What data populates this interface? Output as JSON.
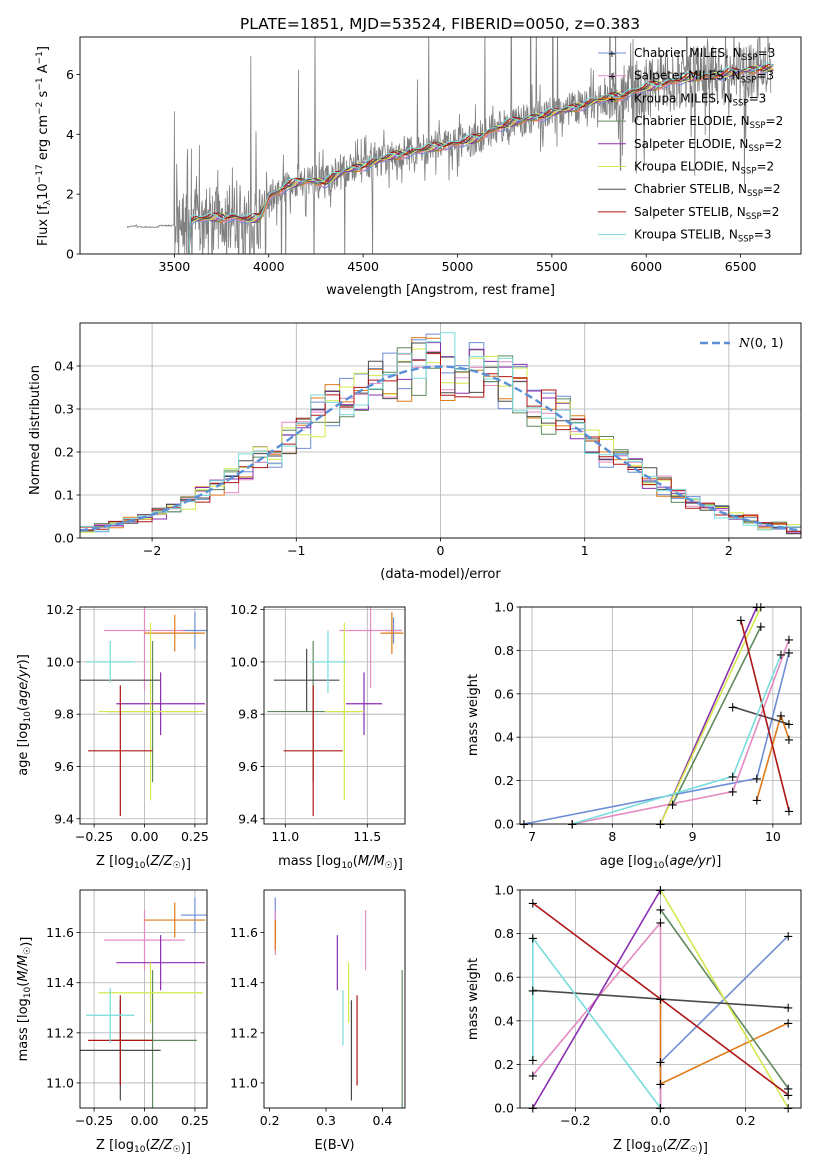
{
  "figure_title": "PLATE=1851, MJD=53524, FIBERID=0050, z=0.383",
  "colors": {
    "Chabrier MILES": "#6c8ed8",
    "Salpeter MILES": "#e58ac3",
    "Kroupa MILES": "#e07b1a",
    "Chabrier ELODIE": "#5f8a5f",
    "Salpeter ELODIE": "#8b2fb1",
    "Kroupa ELODIE": "#d4e84e",
    "Chabrier STELIB": "#4a4a4a",
    "Salpeter STELIB": "#b01515",
    "Kroupa STELIB": "#79dcdc",
    "spectrum": "#808080",
    "gaussian": "#5b8fd6",
    "grid": "#b0b0b0"
  },
  "chart_data": [
    {
      "id": "spectrum",
      "type": "line",
      "title": "PLATE=1851, MJD=53524, FIBERID=0050, z=0.383",
      "xlabel_main": "wavelength [Angstrom, rest frame]",
      "ylabel_parts": [
        "Flux [f",
        "λ",
        "10",
        "−17",
        " erg cm",
        "−2",
        " s",
        "−1",
        " A",
        "−1",
        "]"
      ],
      "xlim": [
        3000,
        6820
      ],
      "ylim": [
        0,
        7.25
      ],
      "xticks": [
        3500,
        4000,
        4500,
        5000,
        5500,
        6000,
        6500
      ],
      "yticks": [
        0,
        2,
        4,
        6
      ],
      "grid": false,
      "legend_position": "upper right",
      "legend": [
        {
          "name": "Chabrier MILES",
          "nssp": "3"
        },
        {
          "name": "Salpeter MILES",
          "nssp": "3"
        },
        {
          "name": "Kroupa MILES",
          "nssp": "3"
        },
        {
          "name": "Chabrier ELODIE",
          "nssp": "2"
        },
        {
          "name": "Salpeter ELODIE",
          "nssp": "2"
        },
        {
          "name": "Kroupa ELODIE",
          "nssp": "2"
        },
        {
          "name": "Chabrier STELIB",
          "nssp": "2"
        },
        {
          "name": "Salpeter STELIB",
          "nssp": "2"
        },
        {
          "name": "Kroupa STELIB",
          "nssp": "3"
        }
      ],
      "nssp_label": "N",
      "nssp_sub": "SSP",
      "spectrum_start": 3250,
      "spectrum_end": 6660,
      "model_start": 3530,
      "model_end": 6680,
      "continuum": [
        [
          3250,
          0.9
        ],
        [
          3300,
          0.95
        ],
        [
          3400,
          0.95
        ],
        [
          3500,
          0.95
        ],
        [
          3600,
          1.15
        ],
        [
          3700,
          1.2
        ],
        [
          3800,
          1.25
        ],
        [
          3900,
          1.15
        ],
        [
          3950,
          1.2
        ],
        [
          4000,
          1.9
        ],
        [
          4100,
          2.3
        ],
        [
          4200,
          2.45
        ],
        [
          4300,
          2.4
        ],
        [
          4400,
          2.75
        ],
        [
          4500,
          2.95
        ],
        [
          4600,
          3.15
        ],
        [
          4700,
          3.35
        ],
        [
          4800,
          3.45
        ],
        [
          4900,
          3.6
        ],
        [
          5000,
          3.7
        ],
        [
          5100,
          3.85
        ],
        [
          5200,
          4.2
        ],
        [
          5300,
          4.4
        ],
        [
          5400,
          4.55
        ],
        [
          5500,
          4.7
        ],
        [
          5600,
          4.85
        ],
        [
          5700,
          5.05
        ],
        [
          5800,
          5.2
        ],
        [
          5900,
          5.35
        ],
        [
          6000,
          5.55
        ],
        [
          6100,
          5.7
        ],
        [
          6200,
          5.85
        ],
        [
          6300,
          5.95
        ],
        [
          6400,
          6.0
        ],
        [
          6500,
          6.1
        ],
        [
          6600,
          6.2
        ],
        [
          6680,
          6.2
        ]
      ]
    },
    {
      "id": "residuals",
      "type": "line",
      "xlabel": "(data-model)/error",
      "ylabel": "Normed distribution",
      "xlim": [
        -2.5,
        2.5
      ],
      "ylim": [
        0,
        0.5
      ],
      "xticks": [
        -2,
        -1,
        0,
        1,
        2
      ],
      "yticks": [
        0.0,
        0.1,
        0.2,
        0.3,
        0.4
      ],
      "grid": true,
      "legend_position": "upper right",
      "gaussian_label_n": "N",
      "gaussian_label_rest": "(0, 1)",
      "gaussian": {
        "mu": 0,
        "sigma": 1
      }
    },
    {
      "id": "age-vs-Z",
      "type": "scatter",
      "xlabel": "Z [log10(Z/Z☉)]",
      "ylabel": "age  [log10(age/yr)]",
      "xlim": [
        -0.32,
        0.31
      ],
      "ylim": [
        9.38,
        10.21
      ],
      "xticks": [
        -0.25,
        0.0,
        0.25
      ],
      "yticks": [
        9.4,
        9.6,
        9.8,
        10.0,
        10.2
      ],
      "grid": true,
      "points": [
        {
          "model": "Chabrier MILES",
          "x": 0.25,
          "xerr": 0.07,
          "y": 10.12,
          "yerr": 0.07
        },
        {
          "model": "Salpeter MILES",
          "x": 0.0,
          "xerr": 0.2,
          "y": 10.12,
          "yerr": 0.23
        },
        {
          "model": "Kroupa MILES",
          "x": 0.15,
          "xerr": 0.15,
          "y": 10.11,
          "yerr": 0.07
        },
        {
          "model": "Chabrier ELODIE",
          "x": 0.04,
          "xerr": 0.22,
          "y": 9.81,
          "yerr": 0.27
        },
        {
          "model": "Salpeter ELODIE",
          "x": 0.08,
          "xerr": 0.22,
          "y": 9.84,
          "yerr": 0.12
        },
        {
          "model": "Kroupa ELODIE",
          "x": 0.03,
          "xerr": 0.26,
          "y": 9.81,
          "yerr": 0.34
        },
        {
          "model": "Chabrier STELIB",
          "x": -0.12,
          "xerr": 0.2,
          "y": 9.93,
          "yerr": 0.0
        },
        {
          "model": "Salpeter STELIB",
          "x": -0.12,
          "xerr": 0.16,
          "y": 9.66,
          "yerr": 0.25
        },
        {
          "model": "Kroupa STELIB",
          "x": -0.17,
          "xerr": 0.12,
          "y": 10.0,
          "yerr": 0.08
        }
      ]
    },
    {
      "id": "age-vs-mass",
      "type": "scatter",
      "xlabel": "mass [log10(M/M☉)]",
      "xlim": [
        10.87,
        11.73
      ],
      "ylim": [
        9.38,
        10.21
      ],
      "xticks": [
        11.0,
        11.5
      ],
      "yticks": [
        9.4,
        9.6,
        9.8,
        10.0,
        10.2
      ],
      "grid": true,
      "points": [
        {
          "model": "Chabrier MILES",
          "x": 11.66,
          "xerr": 0.05,
          "y": 10.12,
          "yerr": 0.05
        },
        {
          "model": "Salpeter MILES",
          "x": 11.52,
          "xerr": 0.19,
          "y": 10.12,
          "yerr": 0.22
        },
        {
          "model": "Kroupa MILES",
          "x": 11.65,
          "xerr": 0.07,
          "y": 10.11,
          "yerr": 0.08
        },
        {
          "model": "Chabrier ELODIE",
          "x": 11.17,
          "xerr": 0.28,
          "y": 9.81,
          "yerr": 0.27
        },
        {
          "model": "Salpeter ELODIE",
          "x": 11.48,
          "xerr": 0.11,
          "y": 9.84,
          "yerr": 0.12
        },
        {
          "model": "Kroupa ELODIE",
          "x": 11.36,
          "xerr": 0.12,
          "y": 9.81,
          "yerr": 0.34
        },
        {
          "model": "Chabrier STELIB",
          "x": 11.13,
          "xerr": 0.2,
          "y": 9.93,
          "yerr": 0.12
        },
        {
          "model": "Salpeter STELIB",
          "x": 11.17,
          "xerr": 0.18,
          "y": 9.66,
          "yerr": 0.25
        },
        {
          "model": "Kroupa STELIB",
          "x": 11.26,
          "xerr": 0.11,
          "y": 10.0,
          "yerr": 0.12
        }
      ]
    },
    {
      "id": "weight-vs-age",
      "type": "line",
      "xlabel": "age  [log10(age/yr)]",
      "ylabel": "mass weight",
      "xlim": [
        6.85,
        10.35
      ],
      "ylim": [
        0,
        1
      ],
      "xticks": [
        7,
        8,
        9,
        10
      ],
      "yticks": [
        0.0,
        0.2,
        0.4,
        0.6,
        0.8,
        1.0
      ],
      "grid": true,
      "series": [
        {
          "model": "Chabrier MILES",
          "x": [
            6.9,
            9.8,
            10.2
          ],
          "y": [
            0.0,
            0.21,
            0.79
          ]
        },
        {
          "model": "Salpeter MILES",
          "x": [
            7.5,
            9.5,
            10.2
          ],
          "y": [
            0.0,
            0.15,
            0.85
          ]
        },
        {
          "model": "Kroupa MILES",
          "x": [
            9.8,
            10.1,
            10.2
          ],
          "y": [
            0.11,
            0.5,
            0.39
          ]
        },
        {
          "model": "Chabrier ELODIE",
          "x": [
            8.75,
            9.85
          ],
          "y": [
            0.09,
            0.91
          ]
        },
        {
          "model": "Salpeter ELODIE",
          "x": [
            8.6,
            9.8
          ],
          "y": [
            0.0,
            1.0
          ]
        },
        {
          "model": "Kroupa ELODIE",
          "x": [
            8.6,
            9.85
          ],
          "y": [
            0.0,
            1.0
          ]
        },
        {
          "model": "Chabrier STELIB",
          "x": [
            9.5,
            10.2
          ],
          "y": [
            0.54,
            0.46
          ]
        },
        {
          "model": "Salpeter STELIB",
          "x": [
            9.6,
            10.2
          ],
          "y": [
            0.94,
            0.06
          ]
        },
        {
          "model": "Kroupa STELIB",
          "x": [
            7.5,
            9.5,
            10.1
          ],
          "y": [
            0.0,
            0.22,
            0.78
          ]
        }
      ]
    },
    {
      "id": "mass-vs-Z",
      "type": "scatter",
      "xlabel": "Z [log10(Z/Z☉)]",
      "ylabel": "mass [log10(M/M☉)]",
      "xlim": [
        -0.32,
        0.31
      ],
      "ylim": [
        10.9,
        11.77
      ],
      "xticks": [
        -0.25,
        0.0,
        0.25
      ],
      "yticks": [
        11.0,
        11.2,
        11.4,
        11.6
      ],
      "grid": true,
      "points": [
        {
          "model": "Chabrier MILES",
          "x": 0.25,
          "xerr": 0.07,
          "y": 11.67,
          "yerr": 0.07
        },
        {
          "model": "Salpeter MILES",
          "x": 0.0,
          "xerr": 0.2,
          "y": 11.57,
          "yerr": 0.12
        },
        {
          "model": "Kroupa MILES",
          "x": 0.15,
          "xerr": 0.15,
          "y": 11.65,
          "yerr": 0.07
        },
        {
          "model": "Chabrier ELODIE",
          "x": 0.04,
          "xerr": 0.22,
          "y": 11.17,
          "yerr": 0.28
        },
        {
          "model": "Salpeter ELODIE",
          "x": 0.08,
          "xerr": 0.22,
          "y": 11.48,
          "yerr": 0.11
        },
        {
          "model": "Kroupa ELODIE",
          "x": 0.03,
          "xerr": 0.26,
          "y": 11.36,
          "yerr": 0.12
        },
        {
          "model": "Chabrier STELIB",
          "x": -0.12,
          "xerr": 0.2,
          "y": 11.13,
          "yerr": 0.2
        },
        {
          "model": "Salpeter STELIB",
          "x": -0.12,
          "xerr": 0.16,
          "y": 11.17,
          "yerr": 0.18
        },
        {
          "model": "Kroupa STELIB",
          "x": -0.17,
          "xerr": 0.12,
          "y": 11.27,
          "yerr": 0.11
        }
      ]
    },
    {
      "id": "mass-vs-EBV",
      "type": "scatter",
      "xlabel": "E(B-V)",
      "xlim": [
        0.19,
        0.44
      ],
      "ylim": [
        10.9,
        11.77
      ],
      "xticks": [
        0.2,
        0.3,
        0.4
      ],
      "yticks": [
        11.0,
        11.2,
        11.4,
        11.6
      ],
      "grid": false,
      "points": [
        {
          "model": "Chabrier MILES",
          "x": 0.21,
          "y": 11.66,
          "yerr": 0.08
        },
        {
          "model": "Salpeter MILES",
          "x": 0.21,
          "y": 11.6,
          "yerr": 0.09
        },
        {
          "model": "Kroupa MILES",
          "x": 0.21,
          "y": 11.59,
          "yerr": 0.06
        },
        {
          "model": "Chabrier ELODIE",
          "x": 0.435,
          "y": 11.17,
          "yerr": 0.28
        },
        {
          "model": "Salpeter ELODIE",
          "x": 0.32,
          "y": 11.48,
          "yerr": 0.11
        },
        {
          "model": "Kroupa ELODIE",
          "x": 0.34,
          "y": 11.36,
          "yerr": 0.12
        },
        {
          "model": "Chabrier STELIB",
          "x": 0.345,
          "y": 11.13,
          "yerr": 0.2
        },
        {
          "model": "Salpeter STELIB",
          "x": 0.355,
          "y": 11.17,
          "yerr": 0.18
        },
        {
          "model": "Salpeter MILES",
          "x": 0.37,
          "y": 11.57,
          "yerr": 0.12
        },
        {
          "model": "Kroupa STELIB",
          "x": 0.33,
          "y": 11.26,
          "yerr": 0.11
        }
      ]
    },
    {
      "id": "weight-vs-Z",
      "type": "line",
      "xlabel": "Z [log10(Z/Z☉)]",
      "ylabel": "mass weight",
      "xlim": [
        -0.33,
        0.33
      ],
      "ylim": [
        0,
        1
      ],
      "xticks": [
        -0.2,
        0.0,
        0.2
      ],
      "yticks": [
        0.0,
        0.2,
        0.4,
        0.6,
        0.8,
        1.0
      ],
      "grid": true,
      "series": [
        {
          "model": "Chabrier MILES",
          "x": [
            0.0,
            0.0,
            0.3
          ],
          "y": [
            0.0,
            0.21,
            0.79
          ]
        },
        {
          "model": "Salpeter MILES",
          "x": [
            -0.3,
            0.0,
            0.0
          ],
          "y": [
            0.15,
            0.85,
            0.0
          ]
        },
        {
          "model": "Kroupa MILES",
          "x": [
            0.0,
            0.0,
            0.3
          ],
          "y": [
            0.5,
            0.11,
            0.39
          ]
        },
        {
          "model": "Chabrier ELODIE",
          "x": [
            0.0,
            0.3
          ],
          "y": [
            0.91,
            0.09
          ]
        },
        {
          "model": "Salpeter ELODIE",
          "x": [
            -0.3,
            0.0
          ],
          "y": [
            0.0,
            1.0
          ]
        },
        {
          "model": "Kroupa ELODIE",
          "x": [
            0.0,
            0.3
          ],
          "y": [
            1.0,
            0.0
          ]
        },
        {
          "model": "Chabrier STELIB",
          "x": [
            -0.3,
            0.3
          ],
          "y": [
            0.54,
            0.46
          ]
        },
        {
          "model": "Salpeter STELIB",
          "x": [
            -0.3,
            0.3
          ],
          "y": [
            0.94,
            0.06
          ]
        },
        {
          "model": "Kroupa STELIB",
          "x": [
            -0.3,
            -0.3,
            0.0
          ],
          "y": [
            0.22,
            0.78,
            0.0
          ]
        }
      ]
    }
  ]
}
